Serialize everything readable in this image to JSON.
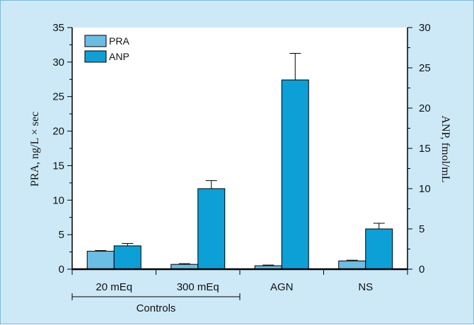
{
  "chart_data": {
    "type": "bar",
    "categories": [
      "20 mEq",
      "300 mEq",
      "AGN",
      "NS"
    ],
    "group_label": "Controls",
    "series": [
      {
        "name": "PRA",
        "axis": "left",
        "values": [
          2.6,
          0.7,
          0.5,
          1.2
        ],
        "errors": [
          0.1,
          0.1,
          0.1,
          0.1
        ],
        "color": "#6bbde3"
      },
      {
        "name": "ANP",
        "axis": "right",
        "values": [
          2.9,
          10.0,
          23.5,
          5.0
        ],
        "errors": [
          0.3,
          1.0,
          3.3,
          0.7
        ],
        "color": "#0da0d6"
      }
    ],
    "ylabel_left": "PRA, ng/L × sec",
    "ylabel_right": "ANP, fmol/mL",
    "ylim_left": [
      0,
      35
    ],
    "ylim_right": [
      0,
      30
    ],
    "yticks_left": [
      "0",
      "5",
      "10",
      "15",
      "20",
      "25",
      "30",
      "35"
    ],
    "yticks_right": [
      "0",
      "5",
      "10",
      "15",
      "20",
      "25",
      "30"
    ],
    "legend_position": "top-left",
    "grid": false
  }
}
